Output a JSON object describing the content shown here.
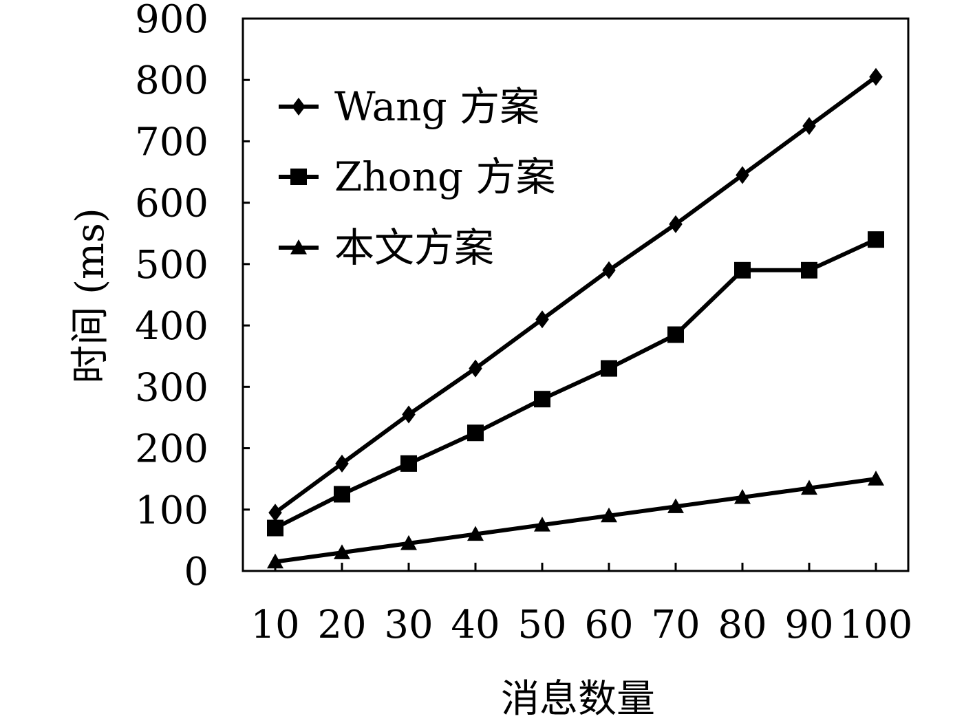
{
  "chart_data": {
    "type": "line",
    "xlabel": "消息数量",
    "ylabel": "时间 (ms)",
    "categories": [
      "10",
      "20",
      "30",
      "40",
      "50",
      "60",
      "70",
      "80",
      "90",
      "100"
    ],
    "x": [
      10,
      20,
      30,
      40,
      50,
      60,
      70,
      80,
      90,
      100
    ],
    "yticks": [
      "0",
      "100",
      "200",
      "300",
      "400",
      "500",
      "600",
      "700",
      "800",
      "900"
    ],
    "ylim": [
      0,
      900
    ],
    "grid": false,
    "legend_position": "top-left",
    "series": [
      {
        "name": "Wang 方案",
        "marker": "diamond",
        "values": [
          95,
          175,
          255,
          330,
          410,
          490,
          565,
          645,
          725,
          805
        ]
      },
      {
        "name": "Zhong 方案",
        "marker": "square",
        "values": [
          70,
          125,
          175,
          225,
          280,
          330,
          385,
          490,
          490,
          540
        ]
      },
      {
        "name": "本文方案",
        "marker": "triangle",
        "values": [
          15,
          30,
          45,
          60,
          75,
          90,
          105,
          120,
          135,
          150
        ]
      }
    ]
  }
}
